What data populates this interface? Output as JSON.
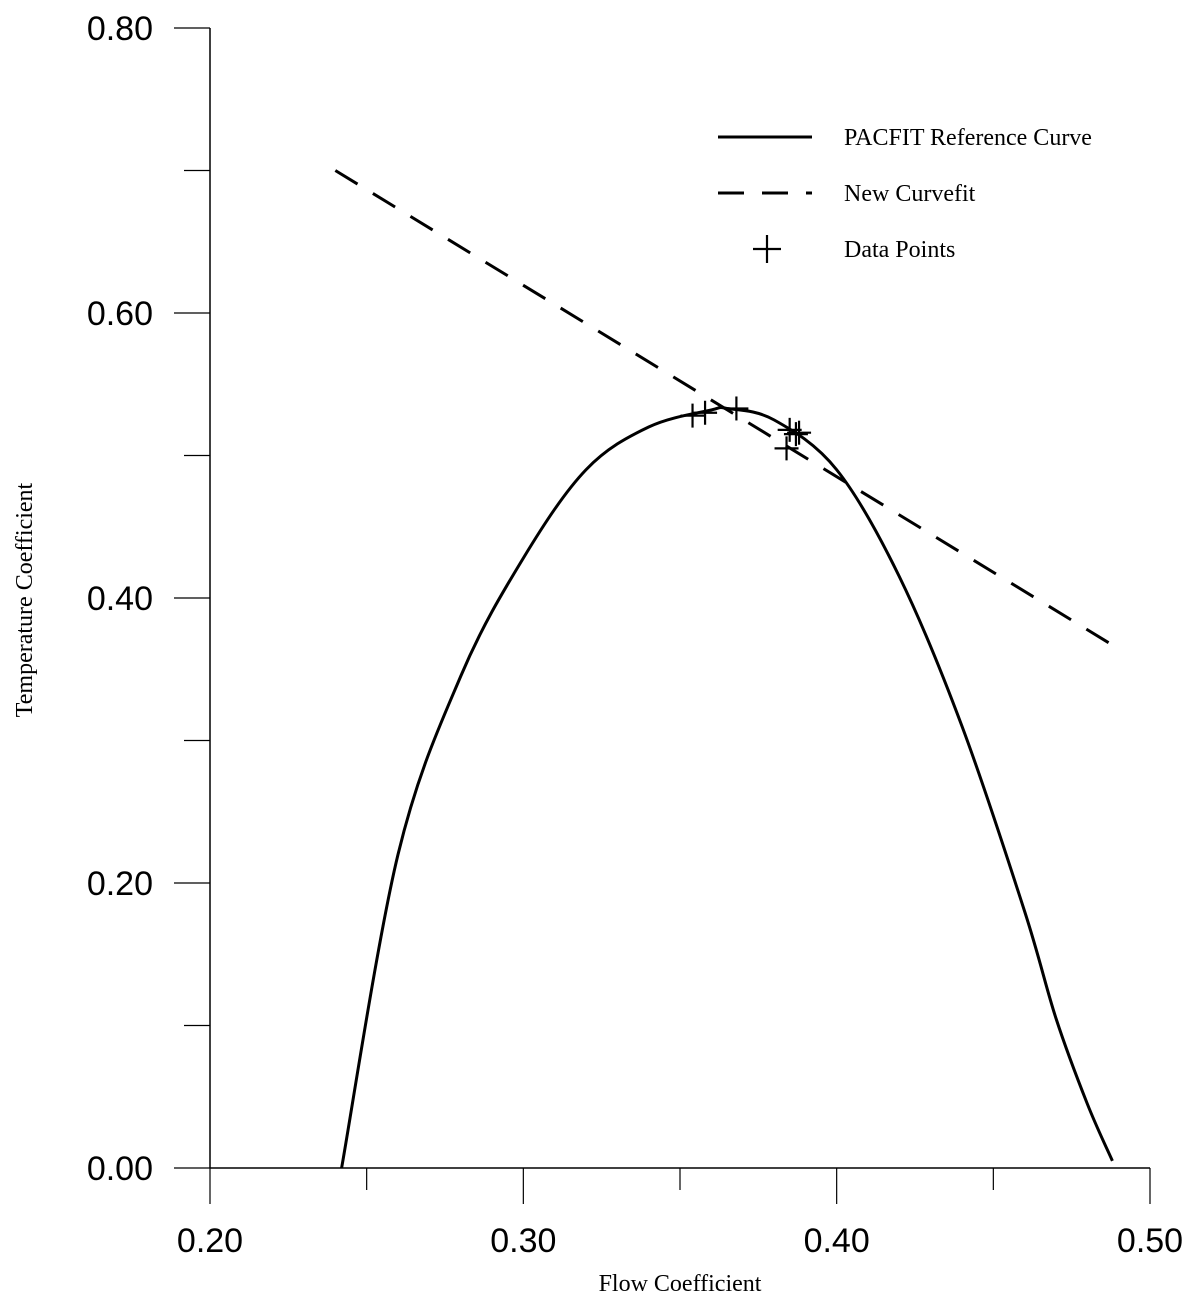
{
  "chart_data": {
    "type": "line",
    "xlabel": "Flow Coefficient",
    "ylabel": "Temperature Coefficient",
    "xlim": [
      0.2,
      0.5
    ],
    "ylim": [
      0.0,
      0.8
    ],
    "x_ticks": [
      "0.20",
      "0.30",
      "0.40",
      "0.50"
    ],
    "y_ticks": [
      "0.00",
      "0.20",
      "0.40",
      "0.60",
      "0.80"
    ],
    "legend_position": "top-right",
    "series": [
      {
        "name": "PACFIT Reference Curve",
        "style": "solid",
        "x": [
          0.242,
          0.26,
          0.28,
          0.3,
          0.32,
          0.34,
          0.36,
          0.365,
          0.38,
          0.4,
          0.42,
          0.44,
          0.46,
          0.47,
          0.48,
          0.488
        ],
        "y": [
          0.0,
          0.22,
          0.345,
          0.428,
          0.49,
          0.52,
          0.532,
          0.533,
          0.525,
          0.49,
          0.415,
          0.31,
          0.18,
          0.105,
          0.045,
          0.005
        ]
      },
      {
        "name": "New Curvefit",
        "style": "dashed",
        "x": [
          0.24,
          0.488
        ],
        "y": [
          0.7,
          0.367
        ]
      },
      {
        "name": "Data Points",
        "style": "markers",
        "x": [
          0.354,
          0.358,
          0.368,
          0.384,
          0.385,
          0.387,
          0.388
        ],
        "y": [
          0.528,
          0.53,
          0.533,
          0.505,
          0.518,
          0.515,
          0.516
        ]
      }
    ]
  }
}
